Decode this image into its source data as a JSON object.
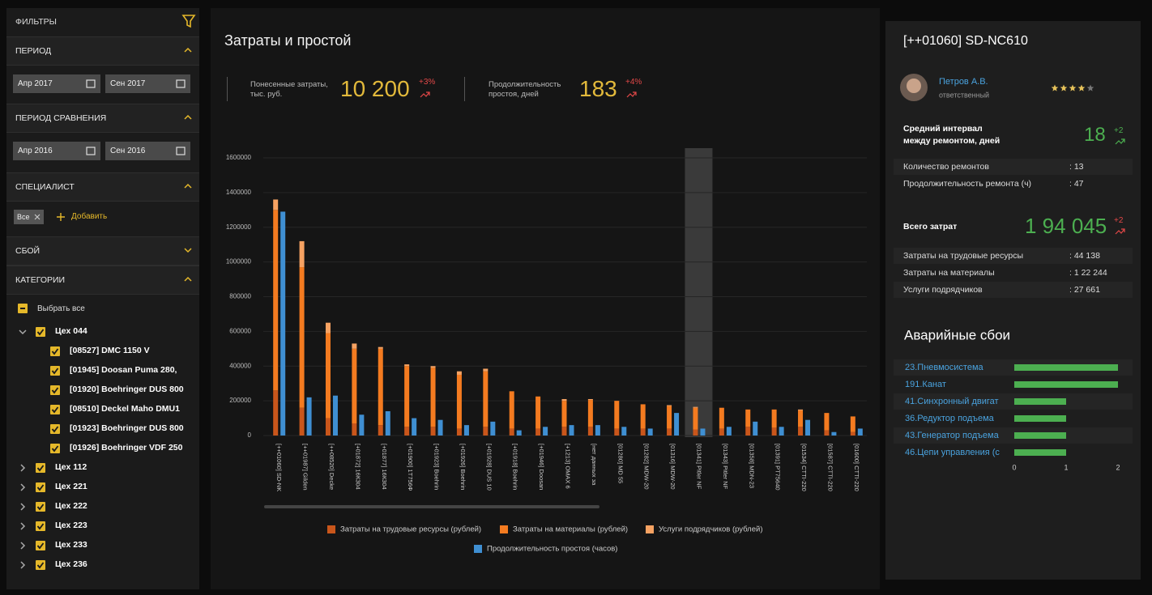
{
  "sidebar": {
    "title": "ФИЛЬТРЫ",
    "period": {
      "title": "ПЕРИОД",
      "from": "Апр 2017",
      "to": "Сен 2017"
    },
    "comparison": {
      "title": "ПЕРИОД СРАВНЕНИЯ",
      "from": "Апр 2016",
      "to": "Сен 2016"
    },
    "specialist": {
      "title": "СПЕЦИАЛИСТ",
      "chip": "Все",
      "add": "Добавить"
    },
    "failure": {
      "title": "СБОЙ"
    },
    "categories": {
      "title": "КАТЕГОРИИ",
      "select_all": "Выбрать все",
      "groups": [
        {
          "name": "Цех 044",
          "items": [
            "[08527] DMC 1150 V",
            "[01945] Doosan Puma 280,",
            "[01920] Boehringer DUS 800",
            "[08510] Deckel Maho DMU1",
            "[01923] Boehringer DUS 800",
            "[01926] Boehringer VDF 250"
          ]
        },
        {
          "name": "Цех 112"
        },
        {
          "name": "Цех 221"
        },
        {
          "name": "Цех 222"
        },
        {
          "name": "Цех 223"
        },
        {
          "name": "Цех 233"
        },
        {
          "name": "Цех 236"
        }
      ]
    }
  },
  "header": {
    "title": "Затраты и простой",
    "kpis": [
      {
        "label": "Понесенные затраты,\nтыс. руб.",
        "value": "10 200",
        "delta": "+3%"
      },
      {
        "label": "Продолжительность\nпростоя, дней",
        "value": "183",
        "delta": "+4%"
      }
    ]
  },
  "chart_data": [
    {
      "type": "bar",
      "categories": [
        "[++01060] SD-NK",
        "[++01987] Gilden",
        "[++08520] Decke",
        "[+01872] 16К304",
        "[+01877] 16К304",
        "[+01900] 1Т756Ф",
        "[+01923] Boehrin",
        "[+01926] Boehrin",
        "[+01928] DUS 10",
        "[+01918] Boehrin",
        "[+01946] Doosan",
        "[+1213] OMAX 6",
        "[нет данных за",
        "[01280] MD 55",
        "[01282] MDW-20",
        "[01316] MDW-20",
        "[01341] Pitler NF",
        "[01343] Pitler NF",
        "[01358] MDN-23",
        "[01391] PT75640",
        "[01534] CTTI-220",
        "[01587] CTTI-220",
        "[01600] CTTI-220"
      ],
      "series": [
        {
          "name": "Затраты на трудовые ресурсы (рублей)",
          "color": "#c9561b",
          "stack": true,
          "values": [
            260000,
            160000,
            100000,
            70000,
            60000,
            50000,
            50000,
            40000,
            50000,
            40000,
            40000,
            50000,
            50000,
            40000,
            40000,
            40000,
            35000,
            40000,
            50000,
            45000,
            50000,
            30000,
            20000
          ]
        },
        {
          "name": "Затраты на материалы (рублей)",
          "color": "#f47b20",
          "stack": true,
          "values": [
            1040000,
            810000,
            490000,
            430000,
            440000,
            350000,
            340000,
            310000,
            320000,
            215000,
            185000,
            150000,
            155000,
            160000,
            140000,
            130000,
            125000,
            120000,
            100000,
            105000,
            95000,
            100000,
            90000
          ]
        },
        {
          "name": "Услуги подрядчиков (рублей)",
          "color": "#f6a262",
          "stack": true,
          "values": [
            60000,
            150000,
            60000,
            30000,
            10000,
            10000,
            10000,
            20000,
            15000,
            0,
            0,
            10000,
            5000,
            0,
            0,
            5000,
            5000,
            0,
            0,
            0,
            5000,
            0,
            0
          ]
        },
        {
          "name": "Продолжительность простоя (часов)",
          "color": "#3f8fd2",
          "values": [
            1290000,
            220000,
            230000,
            120000,
            140000,
            100000,
            90000,
            60000,
            80000,
            30000,
            50000,
            60000,
            60000,
            50000,
            40000,
            130000,
            40000,
            50000,
            80000,
            50000,
            90000,
            20000,
            40000
          ]
        }
      ],
      "ylim": [
        0,
        1600000
      ],
      "yticks": [
        0,
        200000,
        400000,
        600000,
        800000,
        1000000,
        1200000,
        1400000,
        1600000
      ],
      "grid": true,
      "highlight_index": 16
    },
    {
      "type": "barh",
      "title": "Аварийные сбои",
      "categories": [
        "23.Пневмосистема",
        "191.Канат",
        "41.Синхронный двигат",
        "36.Редуктор подъема",
        "43.Генератор подъема",
        "46.Цепи управления (с"
      ],
      "values": [
        2,
        2,
        1,
        1,
        1,
        1
      ],
      "color": "#4caf50",
      "xlim": [
        0,
        2
      ],
      "xticks": [
        0,
        1,
        2
      ]
    }
  ],
  "details": {
    "title": "[++01060] SD-NC610",
    "person": {
      "name": "Петров А.В.",
      "role": "ответственный",
      "rating": 4,
      "rating_max": 5
    },
    "interval": {
      "label": "Средний интервал\nмежду ремонтом, дней",
      "value": "18",
      "delta": "+2"
    },
    "repairs": [
      {
        "label": "Количество ремонтов",
        "value": ": 13"
      },
      {
        "label": "Продолжительность ремонта (ч)",
        "value": ": 47"
      }
    ],
    "total": {
      "label": "Всего затрат",
      "value": "1 94 045",
      "delta": "+2"
    },
    "costs": [
      {
        "label": "Затраты на трудовые ресурсы",
        "value": ": 44 138"
      },
      {
        "label": "Затраты на материалы",
        "value": ": 1 22 244"
      },
      {
        "label": "Услуги подрядчиков",
        "value": ": 27 661"
      }
    ]
  }
}
